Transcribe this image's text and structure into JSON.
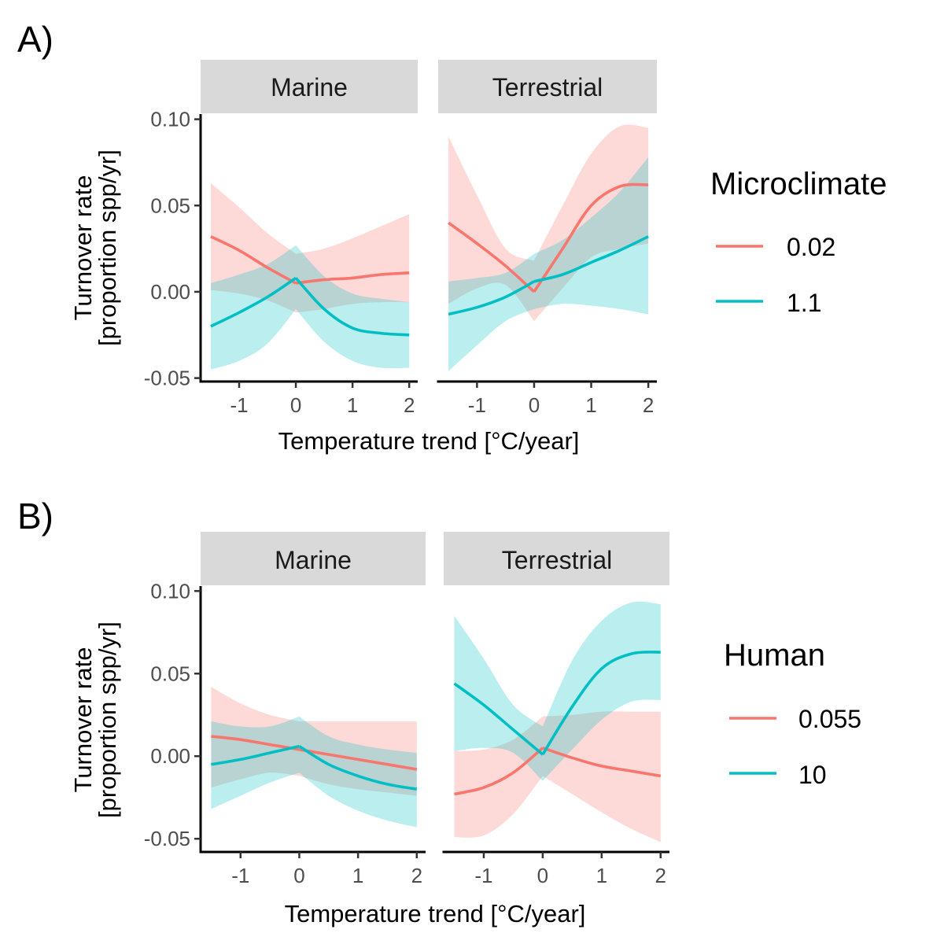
{
  "colors": {
    "red": "#F8766D",
    "teal": "#00BFC4",
    "strip": "#D9D9D9",
    "axis": "#000000"
  },
  "axis_text": {
    "ylabel_line1": "Turnover rate",
    "ylabel_line2": "[proportion spp/yr]",
    "xlabel": "Temperature trend [°C/year]"
  },
  "chart_data": [
    {
      "type": "line",
      "panel_label": "A)",
      "legend_title": "Microclimate",
      "x_ticks": [
        -1,
        0,
        1,
        2
      ],
      "x_tick_labels": [
        "-1",
        "0",
        "1",
        "2"
      ],
      "y_ticks": [
        -0.05,
        0,
        0.05,
        0.1
      ],
      "y_tick_labels": [
        "-0.05",
        "0.00",
        "0.05",
        "0.10"
      ],
      "xlim": [
        -1.68,
        2.15
      ],
      "ylim": [
        -0.052,
        0.103
      ],
      "xlabel": "Temperature trend [°C/year]",
      "ylabel": "Turnover rate [proportion spp/yr]",
      "legend_entries": [
        {
          "label": "0.02",
          "color": "#F8766D"
        },
        {
          "label": "1.1",
          "color": "#00BFC4"
        }
      ],
      "facets": [
        {
          "label": "Marine",
          "series": [
            {
              "name": "0.02",
              "color": "#F8766D",
              "x": [
                -1.5,
                -1.0,
                -0.5,
                0.0,
                0.5,
                1.0,
                1.5,
                2.0
              ],
              "y": [
                0.032,
                0.024,
                0.014,
                0.005,
                0.007,
                0.008,
                0.01,
                0.011
              ],
              "lower": [
                0.001,
                -0.001,
                -0.005,
                -0.012,
                -0.01,
                -0.007,
                -0.006,
                -0.006
              ],
              "upper": [
                0.063,
                0.049,
                0.034,
                0.022,
                0.025,
                0.031,
                0.038,
                0.045
              ]
            },
            {
              "name": "1.1",
              "color": "#00BFC4",
              "x": [
                -1.5,
                -1.0,
                -0.5,
                0.0,
                0.5,
                1.0,
                1.5,
                2.0
              ],
              "y": [
                -0.02,
                -0.012,
                -0.003,
                0.008,
                -0.01,
                -0.021,
                -0.024,
                -0.025
              ],
              "lower": [
                -0.045,
                -0.04,
                -0.03,
                -0.01,
                -0.029,
                -0.04,
                -0.044,
                -0.044
              ],
              "upper": [
                0.005,
                0.01,
                0.016,
                0.027,
                0.009,
                -0.001,
                -0.004,
                -0.006
              ]
            }
          ]
        },
        {
          "label": "Terrestrial",
          "series": [
            {
              "name": "0.02",
              "color": "#F8766D",
              "x": [
                -1.5,
                -1.0,
                -0.5,
                0.0,
                0.5,
                1.0,
                1.5,
                2.0
              ],
              "y": [
                0.04,
                0.028,
                0.015,
                0.0,
                0.025,
                0.05,
                0.061,
                0.062
              ],
              "lower": [
                -0.007,
                0.002,
                0.004,
                -0.017,
                0.002,
                0.02,
                0.025,
                0.028
              ],
              "upper": [
                0.09,
                0.056,
                0.025,
                0.018,
                0.05,
                0.08,
                0.096,
                0.095
              ]
            },
            {
              "name": "1.1",
              "color": "#00BFC4",
              "x": [
                -1.5,
                -1.0,
                -0.5,
                0.0,
                0.5,
                1.0,
                1.5,
                2.0
              ],
              "y": [
                -0.013,
                -0.009,
                -0.003,
                0.006,
                0.01,
                0.017,
                0.024,
                0.032
              ],
              "lower": [
                -0.046,
                -0.031,
                -0.017,
                -0.01,
                -0.007,
                -0.008,
                -0.01,
                -0.013
              ],
              "upper": [
                0.006,
                0.008,
                0.011,
                0.022,
                0.03,
                0.043,
                0.058,
                0.078
              ]
            }
          ]
        }
      ]
    },
    {
      "type": "line",
      "panel_label": "B)",
      "legend_title": "Human",
      "x_ticks": [
        -1,
        0,
        1,
        2
      ],
      "x_tick_labels": [
        "-1",
        "0",
        "1",
        "2"
      ],
      "y_ticks": [
        -0.05,
        0,
        0.05,
        0.1
      ],
      "y_tick_labels": [
        "-0.05",
        "0.00",
        "0.05",
        "0.10"
      ],
      "xlim": [
        -1.68,
        2.15
      ],
      "ylim": [
        -0.058,
        0.103
      ],
      "xlabel": "Temperature trend [°C/year]",
      "ylabel": "Turnover rate [proportion spp/yr]",
      "legend_entries": [
        {
          "label": "0.055",
          "color": "#F8766D"
        },
        {
          "label": "10",
          "color": "#00BFC4"
        }
      ],
      "facets": [
        {
          "label": "Marine",
          "series": [
            {
              "name": "0.055",
              "color": "#F8766D",
              "x": [
                -1.5,
                -1.0,
                -0.5,
                0.0,
                0.5,
                1.0,
                1.5,
                2.0
              ],
              "y": [
                0.012,
                0.01,
                0.007,
                0.004,
                0.001,
                -0.002,
                -0.005,
                -0.008
              ],
              "lower": [
                -0.019,
                -0.014,
                -0.01,
                -0.012,
                -0.017,
                -0.02,
                -0.022,
                -0.024
              ],
              "upper": [
                0.042,
                0.032,
                0.025,
                0.021,
                0.021,
                0.021,
                0.021,
                0.021
              ]
            },
            {
              "name": "10",
              "color": "#00BFC4",
              "x": [
                -1.5,
                -1.0,
                -0.5,
                0.0,
                0.5,
                1.0,
                1.5,
                2.0
              ],
              "y": [
                -0.005,
                -0.002,
                0.002,
                0.006,
                -0.005,
                -0.012,
                -0.017,
                -0.02
              ],
              "lower": [
                -0.032,
                -0.024,
                -0.016,
                -0.01,
                -0.024,
                -0.033,
                -0.039,
                -0.043
              ],
              "upper": [
                0.021,
                0.018,
                0.018,
                0.024,
                0.012,
                0.007,
                0.004,
                0.002
              ]
            }
          ]
        },
        {
          "label": "Terrestrial",
          "series": [
            {
              "name": "0.055",
              "color": "#F8766D",
              "x": [
                -1.5,
                -1.0,
                -0.5,
                0.0,
                0.5,
                1.0,
                1.5,
                2.0
              ],
              "y": [
                -0.023,
                -0.019,
                -0.01,
                0.005,
                -0.001,
                -0.006,
                -0.009,
                -0.012
              ],
              "lower": [
                -0.049,
                -0.048,
                -0.035,
                -0.012,
                -0.023,
                -0.034,
                -0.044,
                -0.052
              ],
              "upper": [
                0.003,
                0.004,
                0.01,
                0.024,
                0.025,
                0.027,
                0.027,
                0.027
              ]
            },
            {
              "name": "10",
              "color": "#00BFC4",
              "x": [
                -1.5,
                -1.0,
                -0.5,
                0.0,
                0.5,
                1.0,
                1.5,
                2.0
              ],
              "y": [
                0.044,
                0.031,
                0.016,
                0.001,
                0.03,
                0.053,
                0.062,
                0.063
              ],
              "lower": [
                0.003,
                0.005,
                0.002,
                -0.015,
                0.004,
                0.022,
                0.033,
                0.034
              ],
              "upper": [
                0.085,
                0.059,
                0.031,
                0.018,
                0.058,
                0.082,
                0.093,
                0.092
              ]
            }
          ]
        }
      ]
    }
  ]
}
